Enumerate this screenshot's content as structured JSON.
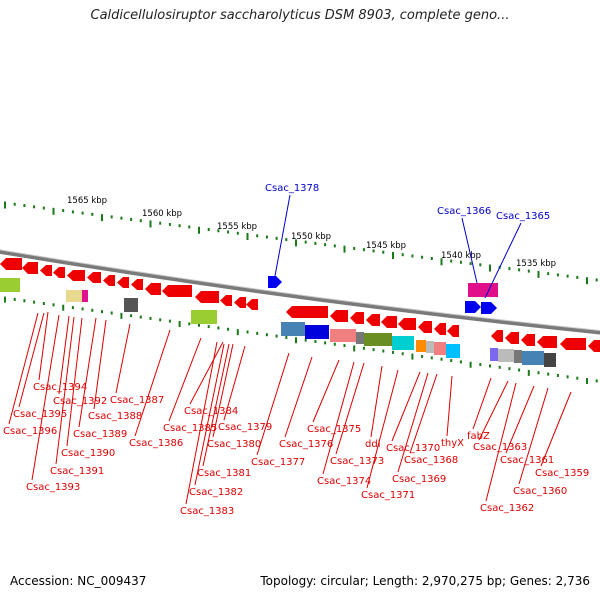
{
  "title": "Caldicellulosiruptor saccharolyticus DSM 8903, complete geno...",
  "footer": {
    "accession": "Accession: NC_009437",
    "summary": "Topology: circular; Length: 2,970,275 bp; Genes: 2,736"
  },
  "kbp_ticks": [
    "1565 kbp",
    "1560 kbp",
    "1555 kbp",
    "1550 kbp",
    "1545 kbp",
    "1540 kbp",
    "1535 kbp"
  ],
  "blue_labels": [
    "Csac_1378",
    "Csac_1366",
    "Csac_1365"
  ],
  "red_labels": [
    "Csac_1394",
    "Csac_1395",
    "Csac_1396",
    "Csac_1392",
    "Csac_1390",
    "Csac_1391",
    "Csac_1393",
    "Csac_1388",
    "Csac_1389",
    "Csac_1387",
    "Csac_1386",
    "Csac_1385",
    "Csac_1384",
    "Csac_1379",
    "Csac_1380",
    "Csac_1381",
    "Csac_1382",
    "Csac_1383",
    "Csac_1377",
    "Csac_1376",
    "Csac_1375",
    "Csac_1373",
    "Csac_1374",
    "ddl",
    "Csac_1371",
    "Csac_1370",
    "Csac_1368",
    "Csac_1369",
    "thyX",
    "fabZ",
    "Csac_1363",
    "Csac_1362",
    "Csac_1361",
    "Csac_1360",
    "Csac_1359"
  ],
  "colors": {
    "gene_red": "#ee0000",
    "gene_blue": "#0000ee",
    "label_red": "#dd0000",
    "label_blue": "#0000cc",
    "tick_green": "#1a7a1a",
    "backbone": "#888888"
  }
}
